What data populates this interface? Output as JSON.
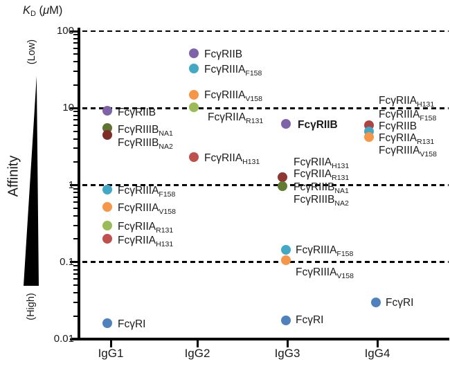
{
  "figure": {
    "y_axis_title": {
      "k": "K",
      "sub": "D",
      "open": " (",
      "mu": "μ",
      "close": "M)"
    },
    "affinity_label": "Affinity",
    "low_label": "(Low)",
    "high_label": "(High)"
  },
  "chart_data": {
    "type": "scatter",
    "y_scale": "log",
    "ylim": [
      0.01,
      100
    ],
    "yticks": [
      100,
      10,
      1,
      0.1,
      0.01
    ],
    "ytick_labels": [
      "100",
      "10",
      "1",
      "0.1",
      "0.01"
    ],
    "gridlines": [
      100,
      10,
      1,
      0.1
    ],
    "grid_style": "dashed",
    "categories": [
      "IgG1",
      "IgG2",
      "IgG3",
      "IgG4"
    ],
    "ylabel": "KD (μM)",
    "receptor_colors": {
      "FcγRI": "#4F81BD",
      "FcγRIIB": "#7E63A8",
      "FcγRIIIA_F158": "#41A8C6",
      "FcγRIIIA_V158": "#F79646",
      "FcγRIIA_R131": "#9BBB59",
      "FcγRIIA_H131": "#C0504D",
      "FcγRIIIB_NA1": "#5E7232",
      "FcγRIIIB_NA2": "#7D2F26"
    },
    "points": [
      {
        "cat": 0,
        "v": 9.2,
        "color": "#7E63A8",
        "name": "igg1-fcgriib"
      },
      {
        "cat": 0,
        "v": 5.5,
        "color": "#5E7232",
        "name": "igg1-fcgriiib-na1"
      },
      {
        "cat": 0,
        "v": 4.5,
        "color": "#7D2F26",
        "name": "igg1-fcgriiib-na2"
      },
      {
        "cat": 0,
        "v": 0.87,
        "color": "#41A8C6",
        "name": "igg1-fcgriiia-f158"
      },
      {
        "cat": 0,
        "v": 0.52,
        "color": "#F79646",
        "name": "igg1-fcgriiia-v158"
      },
      {
        "cat": 0,
        "v": 0.3,
        "color": "#9BBB59",
        "name": "igg1-fcgriia-r131"
      },
      {
        "cat": 0,
        "v": 0.2,
        "color": "#C0504D",
        "name": "igg1-fcgriia-h131"
      },
      {
        "cat": 0,
        "v": 0.016,
        "color": "#4F81BD",
        "name": "igg1-fcgri"
      },
      {
        "cat": 1,
        "v": 52,
        "color": "#7E63A8",
        "name": "igg2-fcgriib"
      },
      {
        "cat": 1,
        "v": 33,
        "color": "#41A8C6",
        "name": "igg2-fcgriiia-f158"
      },
      {
        "cat": 1,
        "v": 15,
        "color": "#F79646",
        "name": "igg2-fcgriiia-v158"
      },
      {
        "cat": 1,
        "v": 10.2,
        "color": "#9BBB59",
        "name": "igg2-fcgriia-r131"
      },
      {
        "cat": 1,
        "v": 2.33,
        "color": "#C0504D",
        "name": "igg2-fcgriia-h131"
      },
      {
        "cat": 2,
        "v": 6.3,
        "color": "#7E63A8",
        "dx": -2,
        "name": "igg3-fcgriib"
      },
      {
        "cat": 2,
        "v": 1.27,
        "color": "#8E3734",
        "dx": -7,
        "name": "igg3-fcgriia-h131-r131"
      },
      {
        "cat": 2,
        "v": 0.96,
        "color": "#637A33",
        "dx": -7,
        "name": "igg3-fcgriiib-na1-na2"
      },
      {
        "cat": 2,
        "v": 0.143,
        "color": "#41A8C6",
        "dx": -2,
        "name": "igg3-fcgriiia-f158"
      },
      {
        "cat": 2,
        "v": 0.106,
        "color": "#F79646",
        "dx": -2,
        "name": "igg3-fcgriiia-v158"
      },
      {
        "cat": 2,
        "v": 0.0174,
        "color": "#4F81BD",
        "dx": -2,
        "name": "igg3-fcgri"
      },
      {
        "cat": 3,
        "v": 6.0,
        "color": "#AE4441",
        "dx": -12,
        "name": "igg4-stack-top"
      },
      {
        "cat": 3,
        "v": 5.0,
        "color": "#41A8C6",
        "dx": -12,
        "name": "igg4-stack-mid"
      },
      {
        "cat": 3,
        "v": 4.2,
        "color": "#F79646",
        "dx": -12,
        "name": "igg4-stack-bottom"
      },
      {
        "cat": 3,
        "v": 0.03,
        "color": "#4F81BD",
        "dx": -2,
        "name": "igg4-fcgri"
      }
    ],
    "labels": [
      {
        "cat": 0,
        "v": 8.8,
        "main": "FcγRIIB"
      },
      {
        "cat": 0,
        "v": 5.2,
        "main": "FcγRIIIB",
        "sub": "NA1"
      },
      {
        "cat": 0,
        "v": 3.5,
        "main": "FcγRIIIB",
        "sub": "NA2"
      },
      {
        "cat": 0,
        "v": 0.85,
        "main": "FcγRIIIA",
        "sub": "F158"
      },
      {
        "cat": 0,
        "v": 0.5,
        "main": "FcγRIIIA",
        "sub": "V158"
      },
      {
        "cat": 0,
        "v": 0.29,
        "main": "FcγRIIA",
        "sub": "R131"
      },
      {
        "cat": 0,
        "v": 0.19,
        "main": "FcγRIIA",
        "sub": "H131"
      },
      {
        "cat": 0,
        "v": 0.0157,
        "main": "FcγRI"
      },
      {
        "cat": 1,
        "v": 50,
        "main": "FcγRIIB"
      },
      {
        "cat": 1,
        "v": 31.5,
        "main": "FcγRIIIA",
        "sub": "F158"
      },
      {
        "cat": 1,
        "v": 14.7,
        "main": "FcγRIIIA",
        "sub": "V158"
      },
      {
        "cat": 1,
        "v": 7.6,
        "main": "FcγRIIA",
        "sub": "R131",
        "dx": 15
      },
      {
        "cat": 1,
        "v": 2.24,
        "main": "FcγRIIA",
        "sub": "H131"
      },
      {
        "cat": 2,
        "v": 6.0,
        "main": "FcγRIIB",
        "dx": 15,
        "bold": true
      },
      {
        "cat": 2,
        "v": 1.98,
        "main": "FcγRIIA",
        "sub": "H131",
        "dx": 9
      },
      {
        "cat": 2,
        "v": 1.39,
        "main": "FcγRIIA",
        "sub": "R131",
        "dx": 9
      },
      {
        "cat": 2,
        "v": 0.94,
        "main": "FcγRIIIB",
        "sub": "NA1",
        "dx": 9
      },
      {
        "cat": 2,
        "v": 0.65,
        "main": "FcγRIIIB",
        "sub": "NA2",
        "dx": 9
      },
      {
        "cat": 2,
        "v": 0.143,
        "main": "FcγRIIIA",
        "sub": "F158",
        "dx": 12
      },
      {
        "cat": 2,
        "v": 0.074,
        "main": "FcγRIIIA",
        "sub": "V158",
        "dx": 12
      },
      {
        "cat": 2,
        "v": 0.0175,
        "main": "FcγRI",
        "dx": 12
      },
      {
        "cat": 3,
        "v": 12.5,
        "main": "FcγRIIA",
        "sub": "H131",
        "dx": 2
      },
      {
        "cat": 3,
        "v": 8.3,
        "main": "FcγRIIIA",
        "sub": "F158",
        "dx": 2
      },
      {
        "cat": 3,
        "v": 5.8,
        "main": "FcγRIIB",
        "dx": 2
      },
      {
        "cat": 3,
        "v": 4.1,
        "main": "FcγRIIA",
        "sub": "R131",
        "dx": 2
      },
      {
        "cat": 3,
        "v": 2.8,
        "main": "FcγRIIIA",
        "sub": "V158",
        "dx": 2
      },
      {
        "cat": 3,
        "v": 0.0299,
        "main": "FcγRI",
        "dx": 12
      }
    ]
  }
}
